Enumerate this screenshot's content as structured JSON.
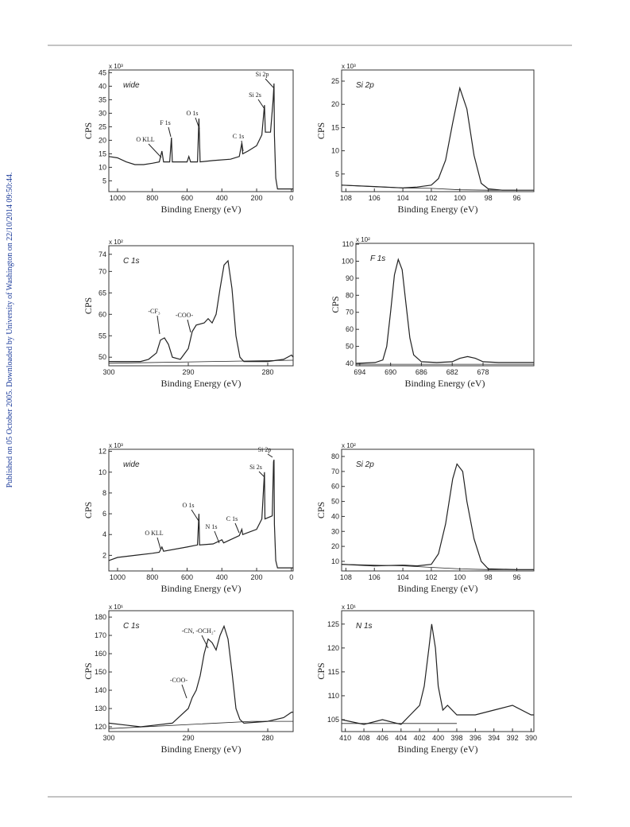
{
  "side_note": "Published on 05 October 2005. Downloaded by University of Washington on 22/10/2014 09:50:44.",
  "chart_data": [
    {
      "type": "line",
      "label": "wide",
      "multiplier": "x 10³",
      "xlabel": "Binding Energy (eV)",
      "ylabel": "CPS",
      "color": "#222222",
      "xlim": [
        1050,
        -10
      ],
      "xticks": [
        1000,
        800,
        600,
        400,
        200,
        0
      ],
      "ylim": [
        1,
        46
      ],
      "yticks": [
        5,
        10,
        15,
        20,
        25,
        30,
        35,
        40,
        45
      ],
      "annotations": [
        "O KLL",
        "F 1s",
        "O 1s",
        "C 1s",
        "Si 2s",
        "Si 2p"
      ],
      "series": [
        {
          "x": [
            1050,
            1000,
            950,
            900,
            850,
            800,
            760,
            745,
            735,
            700,
            690,
            685,
            600,
            590,
            580,
            540,
            532,
            525,
            450,
            350,
            300,
            285,
            280,
            250,
            200,
            170,
            155,
            150,
            120,
            105,
            100,
            98,
            90,
            80,
            0,
            -10
          ],
          "values": [
            14,
            13.5,
            12,
            11,
            11,
            11.5,
            12,
            16,
            12,
            12,
            21,
            12,
            12,
            14,
            12,
            12,
            28,
            12,
            12.5,
            13,
            14,
            19,
            15,
            16,
            18,
            22,
            33,
            23,
            23,
            35,
            41,
            22,
            6,
            2,
            2,
            2
          ]
        }
      ]
    },
    {
      "type": "line",
      "label": "Si 2p",
      "multiplier": "x 10³",
      "xlabel": "Binding Energy (eV)",
      "ylabel": "CPS",
      "color": "#222222",
      "xlim": [
        108.3,
        94.8
      ],
      "xticks": [
        108,
        106,
        104,
        102,
        100,
        98,
        96
      ],
      "ylim": [
        1.2,
        27.4
      ],
      "yticks": [
        5,
        10,
        15,
        20,
        25
      ],
      "annotations": [],
      "series": [
        {
          "x": [
            108.3,
            106,
            104,
            103,
            102,
            101.5,
            101,
            100.5,
            100,
            99.5,
            99,
            98.5,
            98,
            97,
            96,
            94.8
          ],
          "values": [
            2.6,
            2.3,
            2.0,
            2.2,
            2.6,
            4,
            8,
            16,
            23.5,
            19,
            9,
            3,
            1.8,
            1.5,
            1.5,
            1.5
          ]
        },
        {
          "x": [
            108.3,
            104,
            102,
            100,
            98,
            96
          ],
          "values": [
            2.6,
            2.0,
            1.9,
            1.6,
            1.5,
            1.5
          ]
        }
      ]
    },
    {
      "type": "line",
      "label": "C 1s",
      "multiplier": "x 10²",
      "xlabel": "Binding Energy (eV)",
      "ylabel": "CPS",
      "color": "#222222",
      "xlim": [
        300,
        276.8
      ],
      "xticks": [
        300,
        290,
        280
      ],
      "ylim": [
        48,
        76
      ],
      "yticks": [
        50,
        55,
        60,
        65,
        70,
        74
      ],
      "annotations": [
        "-CF₃",
        "-COO-"
      ],
      "series": [
        {
          "x": [
            300,
            296,
            295,
            294,
            293.5,
            293,
            292.5,
            292,
            291,
            290,
            289.5,
            289,
            288,
            287.5,
            287,
            286.5,
            286,
            285.5,
            285,
            284.5,
            284,
            283.5,
            283,
            280,
            278,
            277,
            276.8
          ],
          "values": [
            49,
            49,
            49.5,
            51,
            54,
            54.5,
            53,
            50,
            49.5,
            52,
            56,
            57.5,
            58,
            59,
            58,
            60,
            66,
            71.5,
            72.5,
            66,
            55,
            50,
            49,
            49,
            49.5,
            50.5,
            50
          ]
        },
        {
          "x": [
            300,
            276.8
          ],
          "values": [
            48.6,
            49.3
          ]
        }
      ]
    },
    {
      "type": "line",
      "label": "F 1s",
      "multiplier": "x 10²",
      "xlabel": "Binding Energy (eV)",
      "ylabel": "CPS",
      "color": "#222222",
      "xlim": [
        694.5,
        671.4
      ],
      "xticks": [
        694,
        690,
        686,
        682,
        678
      ],
      "ylim": [
        38.6,
        110.5
      ],
      "yticks": [
        40,
        50,
        60,
        70,
        80,
        90,
        100,
        110
      ],
      "annotations": [],
      "series": [
        {
          "x": [
            694.5,
            692,
            691,
            690.5,
            690,
            689.5,
            689,
            688.5,
            688,
            687.5,
            687,
            686,
            684,
            682,
            681,
            680,
            679,
            678,
            676,
            671.4
          ],
          "values": [
            40,
            40.5,
            42,
            50,
            70,
            92,
            101,
            95,
            75,
            55,
            45,
            41,
            40.5,
            41,
            43,
            44,
            43,
            41,
            40.5,
            40.5
          ]
        },
        {
          "x": [
            694.5,
            671.4
          ],
          "values": [
            39.5,
            39.5
          ]
        }
      ]
    },
    {
      "type": "line",
      "label": "wide",
      "multiplier": "x 10³",
      "xlabel": "Binding Energy (eV)",
      "ylabel": "CPS",
      "color": "#222222",
      "xlim": [
        1050,
        -10
      ],
      "xticks": [
        1000,
        800,
        600,
        400,
        200,
        0
      ],
      "ylim": [
        0.5,
        12.2
      ],
      "yticks": [
        2,
        4,
        6,
        8,
        10,
        12
      ],
      "annotations": [
        "O KLL",
        "O 1s",
        "N 1s",
        "C 1s",
        "Si 2s",
        "Si 2p"
      ],
      "series": [
        {
          "x": [
            1050,
            1000,
            900,
            800,
            760,
            745,
            735,
            600,
            540,
            532,
            528,
            450,
            400,
            390,
            300,
            285,
            280,
            200,
            170,
            155,
            152,
            110,
            103,
            100,
            98,
            90,
            80,
            -10
          ],
          "values": [
            1.5,
            1.8,
            2.0,
            2.2,
            2.3,
            2.8,
            2.4,
            2.8,
            3.0,
            6.0,
            3.0,
            3.1,
            3.5,
            3.2,
            3.9,
            4.5,
            4.0,
            4.5,
            5.5,
            10,
            5.5,
            5.8,
            11,
            11.2,
            5,
            1.5,
            0.8,
            0.8
          ]
        }
      ]
    },
    {
      "type": "line",
      "label": "Si 2p",
      "multiplier": "x 10²",
      "xlabel": "Binding Energy (eV)",
      "ylabel": "CPS",
      "color": "#222222",
      "xlim": [
        108.3,
        94.8
      ],
      "xticks": [
        108,
        106,
        104,
        102,
        100,
        98,
        96
      ],
      "ylim": [
        3.6,
        84.8
      ],
      "yticks": [
        10,
        20,
        30,
        40,
        50,
        60,
        70,
        80
      ],
      "annotations": [],
      "series": [
        {
          "x": [
            108.3,
            106,
            104,
            103,
            102,
            101.5,
            101,
            100.5,
            100.2,
            99.8,
            99.5,
            99,
            98.5,
            98,
            96,
            94.8
          ],
          "values": [
            8,
            7,
            7.5,
            7,
            8,
            15,
            35,
            65,
            75,
            70,
            50,
            25,
            10,
            5,
            4.5,
            4.5
          ]
        },
        {
          "x": [
            108.3,
            104,
            102,
            100,
            98,
            94.8
          ],
          "values": [
            8,
            7,
            6,
            5,
            4.5,
            4.5
          ]
        }
      ]
    },
    {
      "type": "line",
      "label": "C 1s",
      "multiplier": "x 10¹",
      "xlabel": "Binding Energy (eV)",
      "ylabel": "CPS",
      "color": "#222222",
      "xlim": [
        300,
        276.8
      ],
      "xticks": [
        300,
        290,
        280
      ],
      "ylim": [
        117.4,
        183.5
      ],
      "yticks": [
        120,
        130,
        140,
        150,
        160,
        170,
        180
      ],
      "annotations": [
        "-CN, -OCH₂-",
        "-COO-"
      ],
      "series": [
        {
          "x": [
            300,
            298,
            296,
            294,
            292,
            291,
            290,
            289.5,
            289,
            288.5,
            288,
            287.5,
            287,
            286.5,
            286,
            285.5,
            285,
            284.5,
            284,
            283.5,
            283,
            280,
            278,
            277,
            276.8
          ],
          "values": [
            122,
            121,
            120,
            121,
            122,
            126,
            130,
            136,
            140,
            148,
            160,
            168,
            166,
            162,
            170,
            175,
            168,
            150,
            130,
            124,
            122,
            123,
            125,
            128,
            128
          ]
        },
        {
          "x": [
            300,
            282,
            276.8
          ],
          "values": [
            119,
            123,
            123
          ]
        }
      ]
    },
    {
      "type": "line",
      "label": "N 1s",
      "multiplier": "x 10¹",
      "xlabel": "Binding Energy (eV)",
      "ylabel": "CPS",
      "color": "#222222",
      "xlim": [
        410.4,
        389.7
      ],
      "xticks": [
        410,
        408,
        406,
        404,
        402,
        400,
        398,
        396,
        394,
        392,
        390
      ],
      "ylim": [
        102.5,
        127.8
      ],
      "yticks": [
        105,
        110,
        115,
        120,
        125
      ],
      "annotations": [],
      "series": [
        {
          "x": [
            410.4,
            408,
            406,
            404,
            403,
            402,
            401.5,
            401,
            400.7,
            400.3,
            400,
            399.5,
            399,
            398,
            396,
            394,
            392,
            390,
            389.7
          ],
          "values": [
            105,
            104,
            105,
            104,
            106,
            108,
            112,
            120,
            125,
            120,
            112,
            107,
            108,
            106,
            106,
            107,
            108,
            106,
            106
          ]
        },
        {
          "x": [
            410.4,
            398
          ],
          "values": [
            104.2,
            104.2
          ]
        }
      ]
    }
  ]
}
